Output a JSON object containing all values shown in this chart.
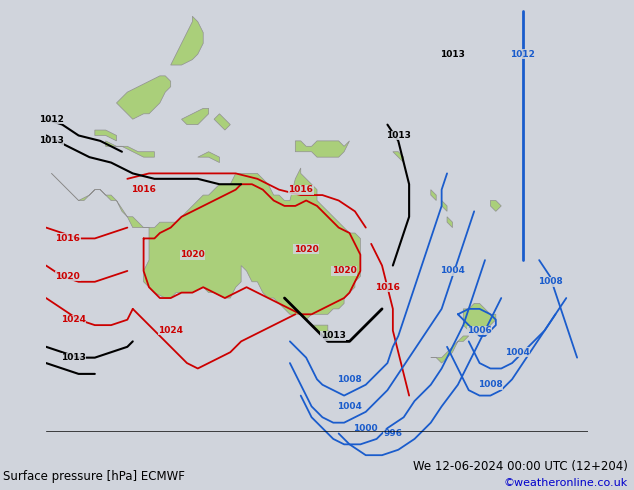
{
  "title_left": "Surface pressure [hPa] ECMWF",
  "title_right": "We 12-06-2024 00:00 UTC (12+204)",
  "credit": "©weatheronline.co.uk",
  "background_color": "#d0d4dc",
  "land_color": "#aacf7a",
  "ocean_color": "#d0d4dc",
  "figsize": [
    6.34,
    4.9
  ],
  "dpi": 100,
  "bottom_text_color": "#000000",
  "credit_color": "#0000cc",
  "font_size_bottom": 8.5,
  "font_size_credit": 8,
  "lon_min": 95,
  "lon_max": 195,
  "lat_min": -65,
  "lat_max": 20
}
